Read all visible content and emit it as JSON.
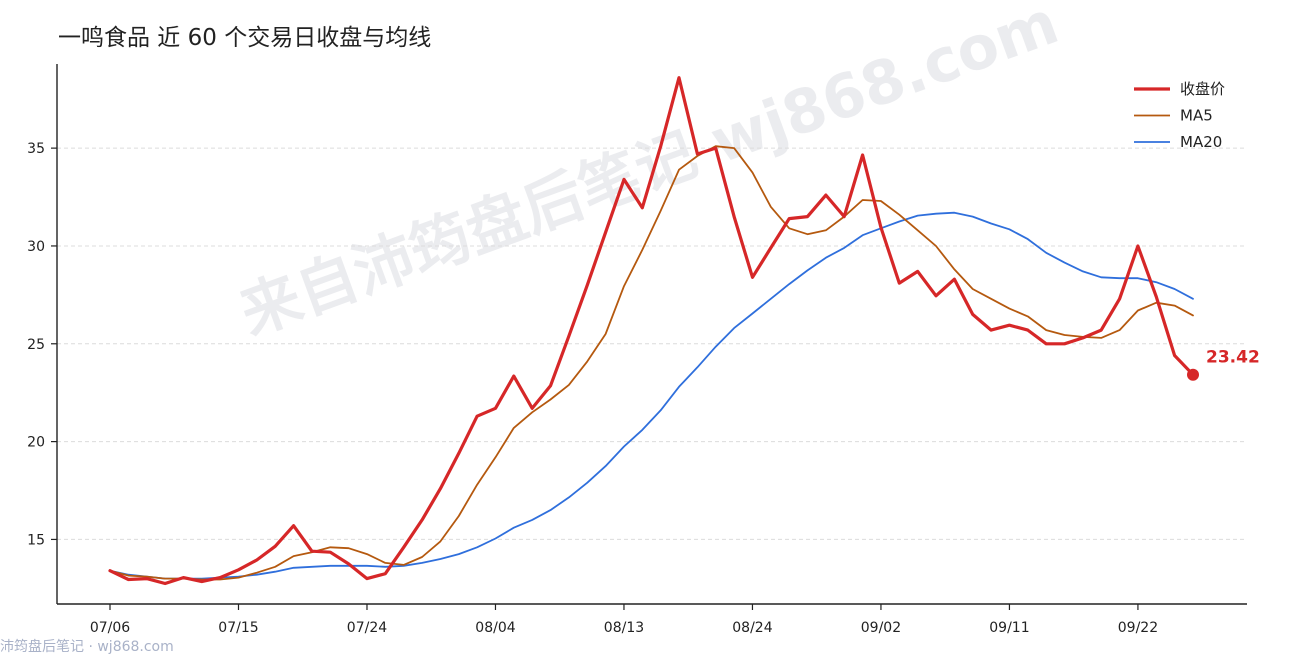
{
  "title": "一鸣食品 近 60 个交易日收盘与均线",
  "watermark": "来自沛筠盘后笔记 wj868.com",
  "footer": "沛筠盘后笔记 · wj868.com",
  "colors": {
    "close": "#d62728",
    "ma5": "#b5590f",
    "ma20": "#2f6fdc",
    "grid": "#dcdcdc"
  },
  "chart_data": {
    "type": "line",
    "title": "一鸣食品 近 60 个交易日收盘与均线",
    "xlabel": "",
    "ylabel": "",
    "x": [
      "07/06",
      "07/07",
      "07/08",
      "07/09",
      "07/10",
      "07/13",
      "07/14",
      "07/15",
      "07/16",
      "07/17",
      "07/20",
      "07/21",
      "07/22",
      "07/23",
      "07/24",
      "07/27",
      "07/28",
      "07/29",
      "07/30",
      "07/31",
      "08/03",
      "08/04",
      "08/05",
      "08/06",
      "08/07",
      "08/10",
      "08/11",
      "08/12",
      "08/13",
      "08/14",
      "08/17",
      "08/18",
      "08/19",
      "08/20",
      "08/21",
      "08/24",
      "08/25",
      "08/26",
      "08/27",
      "08/28",
      "08/31",
      "09/01",
      "09/02",
      "09/03",
      "09/04",
      "09/07",
      "09/08",
      "09/09",
      "09/10",
      "09/11",
      "09/14",
      "09/15",
      "09/16",
      "09/17",
      "09/18",
      "09/21",
      "09/22",
      "09/23",
      "09/24",
      "09/25"
    ],
    "x_ticks": [
      "07/06",
      "07/15",
      "07/24",
      "08/04",
      "08/13",
      "08/24",
      "09/02",
      "09/11",
      "09/22"
    ],
    "yticks": [
      15,
      20,
      25,
      30,
      35
    ],
    "ylim": [
      11.7,
      39.3
    ],
    "grid": "horizontal dashed",
    "legend_position": "top-right",
    "series": [
      {
        "name": "收盘价",
        "values": [
          13.4,
          12.95,
          13.0,
          12.75,
          13.05,
          12.85,
          13.05,
          13.45,
          13.95,
          14.65,
          15.7,
          14.4,
          14.35,
          13.75,
          13.0,
          13.25,
          14.6,
          16.0,
          17.6,
          19.4,
          21.3,
          21.7,
          23.35,
          21.7,
          22.85,
          25.4,
          28.0,
          30.7,
          33.4,
          31.95,
          35.1,
          38.6,
          34.7,
          35.0,
          31.5,
          28.4,
          29.9,
          31.4,
          31.5,
          32.6,
          31.5,
          34.65,
          30.95,
          28.1,
          28.7,
          27.45,
          28.3,
          26.5,
          25.7,
          25.95,
          25.7,
          25.0,
          25.0,
          25.3,
          25.7,
          27.3,
          30.0,
          27.4,
          24.4,
          23.42
        ]
      },
      {
        "name": "MA5",
        "values": [
          13.4,
          13.15,
          13.1,
          13.0,
          13.0,
          12.95,
          12.95,
          13.05,
          13.3,
          13.6,
          14.15,
          14.35,
          14.6,
          14.55,
          14.25,
          13.8,
          13.7,
          14.1,
          14.9,
          16.2,
          17.8,
          19.2,
          20.7,
          21.5,
          22.15,
          22.9,
          24.1,
          25.5,
          27.95,
          29.8,
          31.8,
          33.9,
          34.6,
          35.1,
          35.0,
          33.75,
          32.0,
          30.9,
          30.6,
          30.8,
          31.5,
          32.35,
          32.3,
          31.6,
          30.8,
          30.0,
          28.8,
          27.8,
          27.3,
          26.8,
          26.4,
          25.7,
          25.45,
          25.35,
          25.3,
          25.7,
          26.7,
          27.1,
          26.95,
          26.45
        ]
      },
      {
        "name": "MA20",
        "values": [
          13.4,
          13.2,
          13.1,
          13.0,
          13.0,
          13.0,
          13.05,
          13.1,
          13.2,
          13.35,
          13.55,
          13.6,
          13.65,
          13.65,
          13.65,
          13.6,
          13.65,
          13.8,
          14.0,
          14.25,
          14.6,
          15.05,
          15.6,
          16.0,
          16.5,
          17.15,
          17.9,
          18.75,
          19.75,
          20.6,
          21.6,
          22.8,
          23.8,
          24.85,
          25.8,
          26.55,
          27.3,
          28.05,
          28.75,
          29.4,
          29.9,
          30.55,
          30.9,
          31.25,
          31.55,
          31.65,
          31.7,
          31.5,
          31.15,
          30.85,
          30.35,
          29.65,
          29.15,
          28.7,
          28.4,
          28.35,
          28.35,
          28.15,
          27.8,
          27.3
        ]
      }
    ],
    "annotations": [
      {
        "text": "23.42",
        "x": "09/25",
        "y": 23.42
      }
    ]
  }
}
